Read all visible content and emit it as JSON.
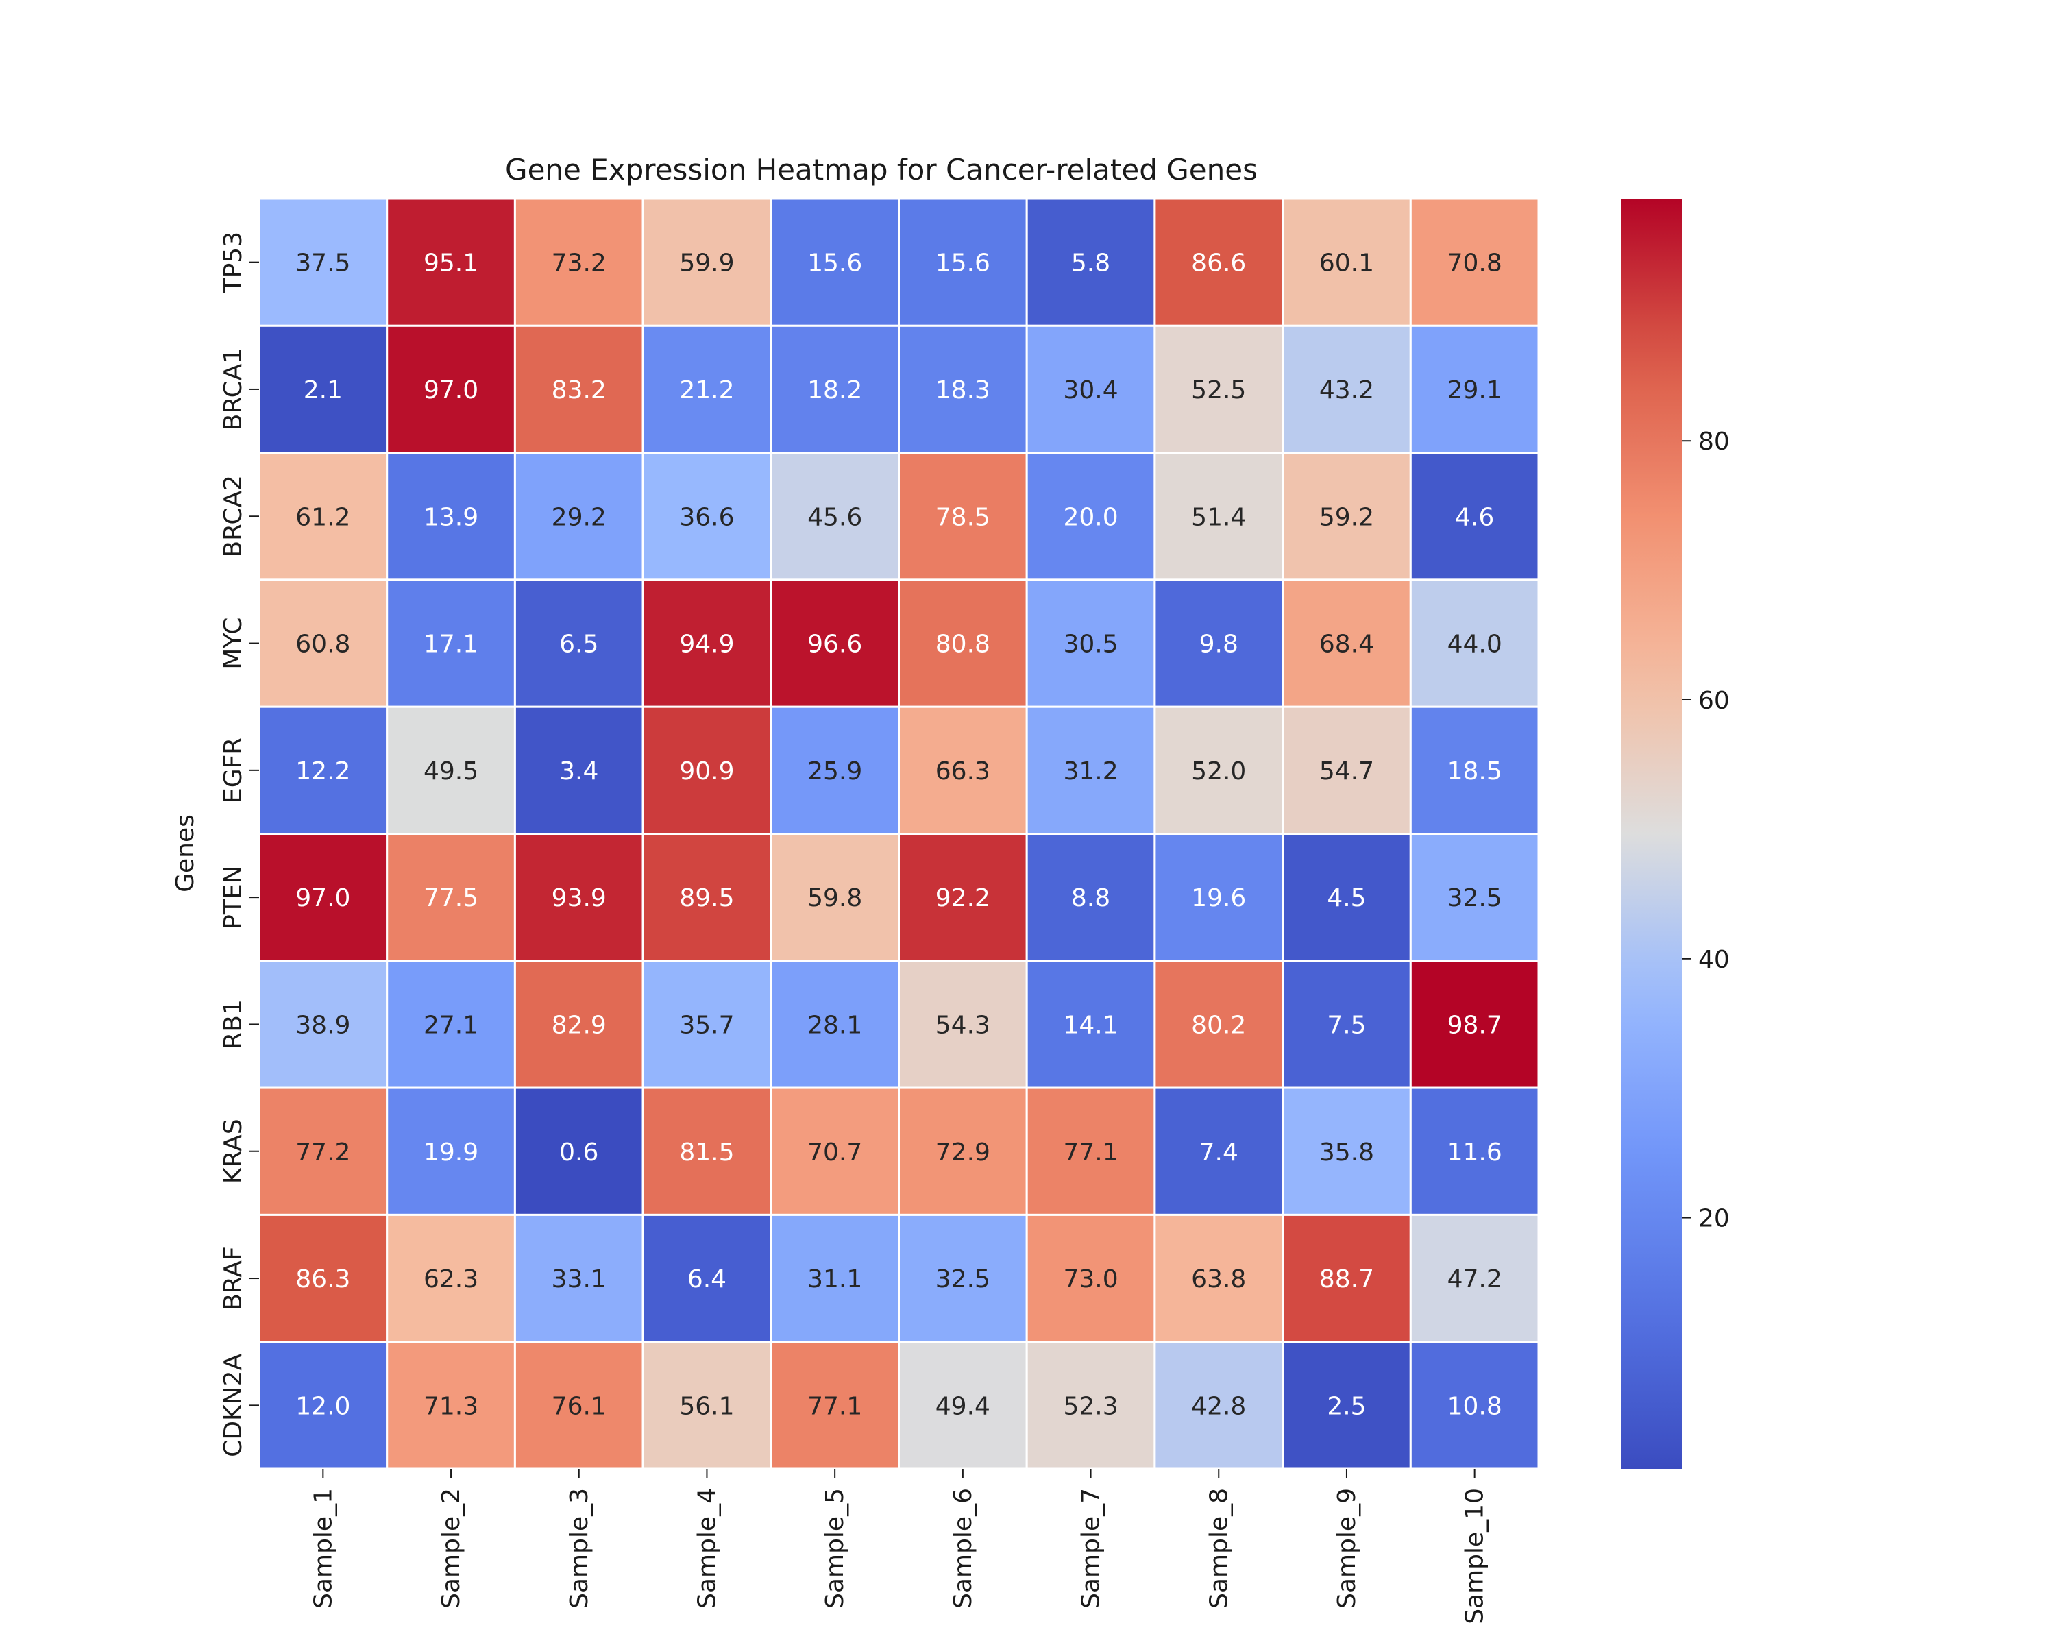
{
  "chart_data": {
    "type": "heatmap",
    "title": "Gene Expression Heatmap for Cancer-related Genes",
    "xlabel": "",
    "ylabel": "Genes",
    "colormap": "coolwarm",
    "vmin": 0.6,
    "vmax": 98.7,
    "colorbar_ticks": [
      20,
      40,
      60,
      80
    ],
    "x_categories": [
      "Sample_1",
      "Sample_2",
      "Sample_3",
      "Sample_4",
      "Sample_5",
      "Sample_6",
      "Sample_7",
      "Sample_8",
      "Sample_9",
      "Sample_10"
    ],
    "y_categories": [
      "TP53",
      "BRCA1",
      "BRCA2",
      "MYC",
      "EGFR",
      "PTEN",
      "RB1",
      "KRAS",
      "BRAF",
      "CDKN2A"
    ],
    "values": [
      [
        37.5,
        95.1,
        73.2,
        59.9,
        15.6,
        15.6,
        5.8,
        86.6,
        60.1,
        70.8
      ],
      [
        2.1,
        97.0,
        83.2,
        21.2,
        18.2,
        18.3,
        30.4,
        52.5,
        43.2,
        29.1
      ],
      [
        61.2,
        13.9,
        29.2,
        36.6,
        45.6,
        78.5,
        20.0,
        51.4,
        59.2,
        4.6
      ],
      [
        60.8,
        17.1,
        6.5,
        94.9,
        96.6,
        80.8,
        30.5,
        9.8,
        68.4,
        44.0
      ],
      [
        12.2,
        49.5,
        3.4,
        90.9,
        25.9,
        66.3,
        31.2,
        52.0,
        54.7,
        18.5
      ],
      [
        97.0,
        77.5,
        93.9,
        89.5,
        59.8,
        92.2,
        8.8,
        19.6,
        4.5,
        32.5
      ],
      [
        38.9,
        27.1,
        82.9,
        35.7,
        28.1,
        54.3,
        14.1,
        80.2,
        7.5,
        98.7
      ],
      [
        77.2,
        19.9,
        0.6,
        81.5,
        70.7,
        72.9,
        77.1,
        7.4,
        35.8,
        11.6
      ],
      [
        86.3,
        62.3,
        33.1,
        6.4,
        31.1,
        32.5,
        73.0,
        63.8,
        88.7,
        47.2
      ],
      [
        12.0,
        71.3,
        76.1,
        56.1,
        77.1,
        49.4,
        52.3,
        42.8,
        2.5,
        10.8
      ]
    ],
    "value_format": "0.0",
    "grid_lines": true,
    "legend": "colorbar-right"
  }
}
